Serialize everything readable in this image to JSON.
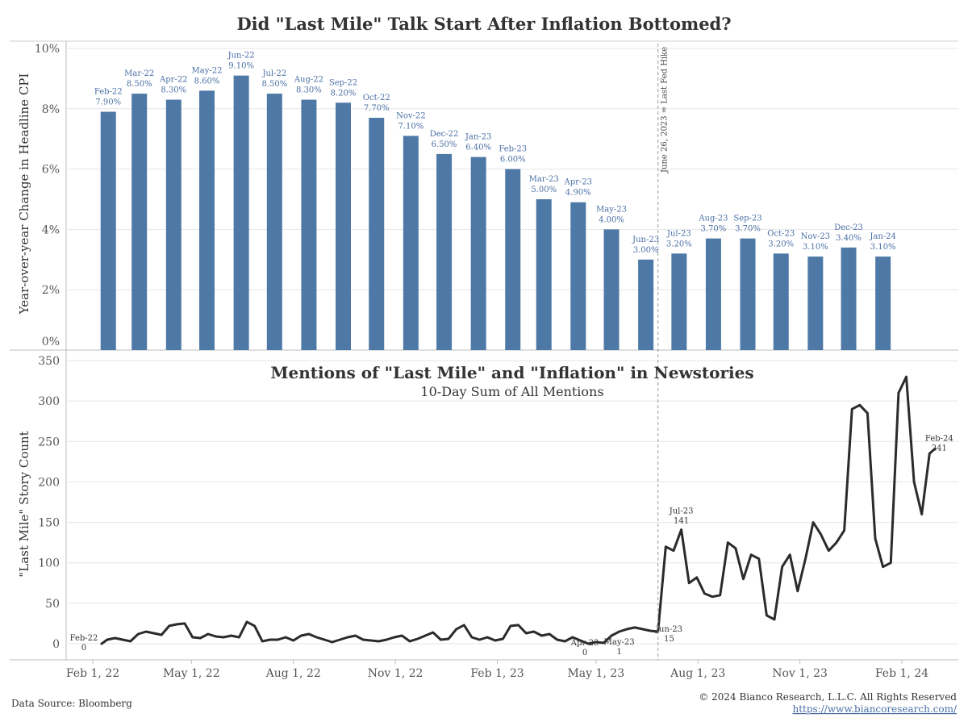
{
  "title": "Did \"Last Mile\" Talk Start After Inflation Bottomed?",
  "footer": {
    "source": "Data Source: Bloomberg",
    "copyright": "© 2024 Bianco Research, L.L.C. All Rights Reserved",
    "url": "https://www.biancoresearch.com/"
  },
  "colors": {
    "bar": "#4e79a7",
    "line": "#2b2b2b",
    "grid": "#e6e6e6"
  },
  "chart_data": [
    {
      "type": "bar",
      "ylabel": "Year-over-year Change in Headline CPI",
      "ylim": [
        0,
        10
      ],
      "y_ticks": [
        "0%",
        "2%",
        "4%",
        "6%",
        "8%",
        "10%"
      ],
      "categories": [
        "Feb-22",
        "Mar-22",
        "Apr-22",
        "May-22",
        "Jun-22",
        "Jul-22",
        "Aug-22",
        "Sep-22",
        "Oct-22",
        "Nov-22",
        "Dec-22",
        "Jan-23",
        "Feb-23",
        "Mar-23",
        "Apr-23",
        "May-23",
        "Jun-23",
        "Jul-23",
        "Aug-23",
        "Sep-23",
        "Oct-23",
        "Nov-23",
        "Dec-23",
        "Jan-24"
      ],
      "values": [
        7.9,
        8.5,
        8.3,
        8.6,
        9.1,
        8.5,
        8.3,
        8.2,
        7.7,
        7.1,
        6.5,
        6.4,
        6.0,
        5.0,
        4.9,
        4.0,
        3.0,
        3.2,
        3.7,
        3.7,
        3.2,
        3.1,
        3.4,
        3.1
      ],
      "value_labels": [
        "7.90%",
        "8.50%",
        "8.30%",
        "8.60%",
        "9.10%",
        "8.50%",
        "8.30%",
        "8.20%",
        "7.70%",
        "7.10%",
        "6.50%",
        "6.40%",
        "6.00%",
        "5.00%",
        "4.90%",
        "4.00%",
        "3.00%",
        "3.20%",
        "3.70%",
        "3.70%",
        "3.20%",
        "3.10%",
        "3.40%",
        "3.10%"
      ],
      "bar_dates": [
        "2022-02-15",
        "2022-03-15",
        "2022-04-15",
        "2022-05-15",
        "2022-06-15",
        "2022-07-15",
        "2022-08-15",
        "2022-09-15",
        "2022-10-15",
        "2022-11-15",
        "2022-12-15",
        "2023-01-15",
        "2023-02-15",
        "2023-03-15",
        "2023-04-15",
        "2023-05-15",
        "2023-06-15",
        "2023-07-15",
        "2023-08-15",
        "2023-09-15",
        "2023-10-15",
        "2023-11-15",
        "2023-12-15",
        "2024-01-15"
      ],
      "reference_line": {
        "date": "2023-06-26",
        "label": "June 26, 2023 = Last Fed Hike"
      }
    },
    {
      "type": "line",
      "title": "Mentions of \"Last Mile\" and \"Inflation\" in Newstories",
      "subtitle": "10-Day Sum of All Mentions",
      "ylabel": "\"Last Mile\" Story Count",
      "ylim": [
        0,
        350
      ],
      "y_ticks": [
        "0",
        "50",
        "100",
        "150",
        "200",
        "250",
        "300",
        "350"
      ],
      "x_ticks": [
        {
          "date": "2022-02-01",
          "label": "Feb 1, 22"
        },
        {
          "date": "2022-05-01",
          "label": "May 1, 22"
        },
        {
          "date": "2022-08-01",
          "label": "Aug 1, 22"
        },
        {
          "date": "2022-11-01",
          "label": "Nov 1, 22"
        },
        {
          "date": "2023-02-01",
          "label": "Feb 1, 23"
        },
        {
          "date": "2023-05-01",
          "label": "May 1, 23"
        },
        {
          "date": "2023-08-01",
          "label": "Aug 1, 23"
        },
        {
          "date": "2023-11-01",
          "label": "Nov 1, 23"
        },
        {
          "date": "2024-02-01",
          "label": "Feb 1, 24"
        }
      ],
      "series": [
        {
          "x": [
            "2022-02-09",
            "2022-02-14",
            "2022-02-21",
            "2022-02-28",
            "2022-03-07",
            "2022-03-14",
            "2022-03-21",
            "2022-03-28",
            "2022-04-04",
            "2022-04-11",
            "2022-04-18",
            "2022-04-25",
            "2022-05-02",
            "2022-05-09",
            "2022-05-16",
            "2022-05-23",
            "2022-05-30",
            "2022-06-06",
            "2022-06-13",
            "2022-06-20",
            "2022-06-27",
            "2022-07-04",
            "2022-07-11",
            "2022-07-18",
            "2022-07-25",
            "2022-08-01",
            "2022-08-08",
            "2022-08-15",
            "2022-08-22",
            "2022-08-29",
            "2022-09-05",
            "2022-09-12",
            "2022-09-19",
            "2022-09-26",
            "2022-10-03",
            "2022-10-10",
            "2022-10-17",
            "2022-10-24",
            "2022-10-31",
            "2022-11-07",
            "2022-11-14",
            "2022-11-21",
            "2022-11-28",
            "2022-12-05",
            "2022-12-12",
            "2022-12-19",
            "2022-12-26",
            "2023-01-02",
            "2023-01-09",
            "2023-01-16",
            "2023-01-23",
            "2023-01-30",
            "2023-02-06",
            "2023-02-13",
            "2023-02-20",
            "2023-02-27",
            "2023-03-06",
            "2023-03-13",
            "2023-03-20",
            "2023-03-27",
            "2023-04-03",
            "2023-04-10",
            "2023-04-17",
            "2023-04-24",
            "2023-05-01",
            "2023-05-08",
            "2023-05-15",
            "2023-05-22",
            "2023-05-29",
            "2023-06-05",
            "2023-06-12",
            "2023-06-19",
            "2023-06-26",
            "2023-07-03",
            "2023-07-10",
            "2023-07-17",
            "2023-07-24",
            "2023-07-31",
            "2023-08-07",
            "2023-08-14",
            "2023-08-21",
            "2023-08-28",
            "2023-09-04",
            "2023-09-11",
            "2023-09-18",
            "2023-09-25",
            "2023-10-02",
            "2023-10-09",
            "2023-10-16",
            "2023-10-23",
            "2023-10-30",
            "2023-11-06",
            "2023-11-13",
            "2023-11-20",
            "2023-11-27",
            "2023-12-04",
            "2023-12-11",
            "2023-12-18",
            "2023-12-25",
            "2024-01-01",
            "2024-01-08",
            "2024-01-15",
            "2024-01-22",
            "2024-01-29",
            "2024-02-05",
            "2024-02-12",
            "2024-02-19",
            "2024-02-26",
            "2024-03-02"
          ],
          "values": [
            0,
            5,
            7,
            5,
            3,
            12,
            15,
            13,
            11,
            22,
            24,
            25,
            8,
            7,
            12,
            9,
            8,
            10,
            8,
            27,
            22,
            3,
            5,
            5,
            8,
            4,
            10,
            12,
            8,
            5,
            2,
            5,
            8,
            10,
            5,
            4,
            3,
            5,
            8,
            10,
            3,
            6,
            10,
            14,
            5,
            6,
            18,
            23,
            8,
            5,
            8,
            4,
            6,
            22,
            23,
            13,
            15,
            10,
            12,
            5,
            3,
            8,
            4,
            0,
            2,
            1,
            10,
            15,
            18,
            20,
            18,
            16,
            15,
            120,
            115,
            141,
            75,
            82,
            62,
            58,
            60,
            125,
            118,
            80,
            110,
            105,
            35,
            30,
            95,
            110,
            65,
            105,
            150,
            135,
            115,
            125,
            140,
            290,
            295,
            285,
            130,
            95,
            100,
            310,
            330,
            200,
            160,
            235,
            241
          ]
        }
      ],
      "annotations": [
        {
          "date": "2022-02-09",
          "value": 0,
          "label": "Feb-22",
          "value_label": "0"
        },
        {
          "date": "2023-04-21",
          "value": 0,
          "label": "Apr-23",
          "value_label": "0"
        },
        {
          "date": "2023-05-22",
          "value": 1,
          "label": "May-23",
          "value_label": "1"
        },
        {
          "date": "2023-06-20",
          "value": 15,
          "label": "Jun-23",
          "value_label": "15"
        },
        {
          "date": "2023-07-17",
          "value": 141,
          "label": "Jul-23",
          "value_label": "141"
        },
        {
          "date": "2024-02-26",
          "value": 241,
          "label": "Feb-24",
          "value_label": "241"
        }
      ]
    }
  ]
}
